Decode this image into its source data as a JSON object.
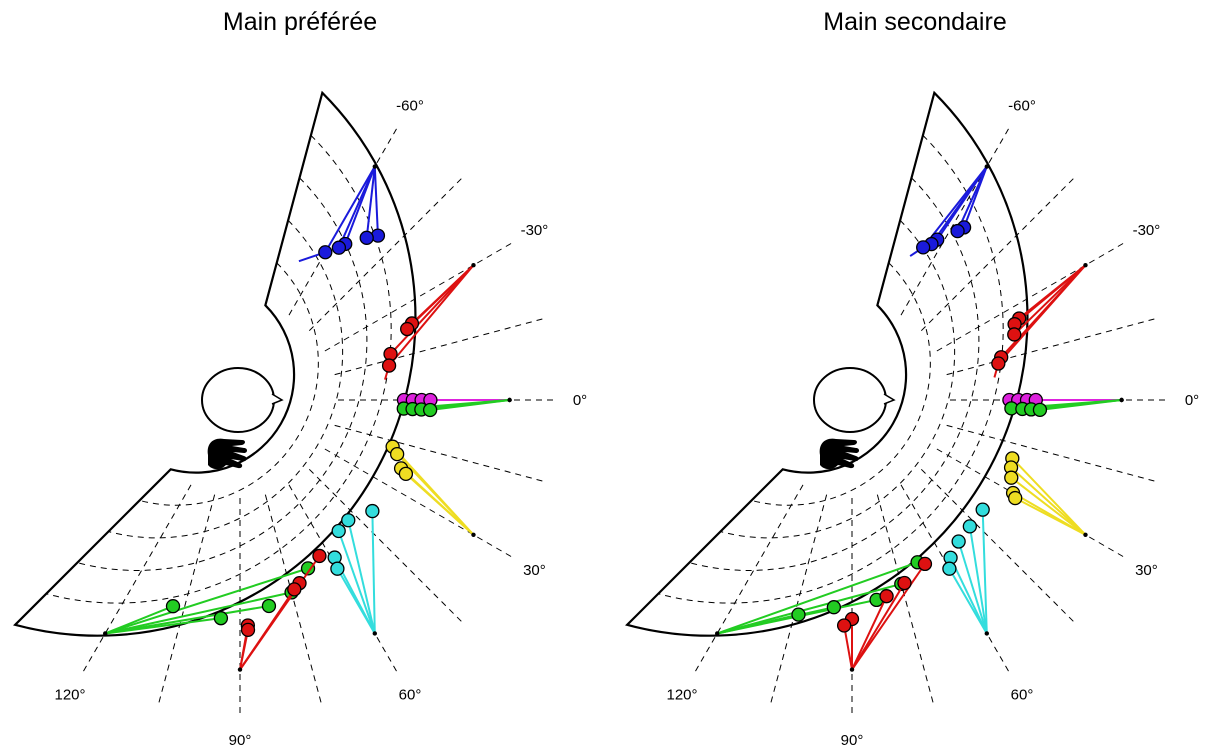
{
  "chart_data": [
    {
      "type": "scatter",
      "subtype": "polar-sector",
      "title": "Main préférée",
      "angle_unit": "degrees",
      "angle_range": [
        -75,
        135
      ],
      "angle_ticks": [
        {
          "angle": -60,
          "label": "-60°"
        },
        {
          "angle": -30,
          "label": "-30°"
        },
        {
          "angle": 0,
          "label": "0°"
        },
        {
          "angle": 30,
          "label": "30°"
        },
        {
          "angle": 60,
          "label": "60°"
        },
        {
          "angle": 90,
          "label": "90°"
        },
        {
          "angle": 120,
          "label": "120°"
        }
      ],
      "radius_range": [
        0,
        1
      ],
      "grid": true,
      "series": [
        {
          "color": "#1a1adb",
          "target": {
            "angle": -60,
            "r": 0.78
          },
          "points": [
            {
              "angle": -50,
              "r": 0.53
            },
            {
              "angle": -52,
              "r": 0.49
            },
            {
              "angle": -56,
              "r": 0.41
            },
            {
              "angle": -57,
              "r": 0.38
            },
            {
              "angle": -60,
              "r": 0.33
            }
          ],
          "start": {
            "angle": -67,
            "r": 0.24
          }
        },
        {
          "color": "#dd1111",
          "target": {
            "angle": -30,
            "r": 0.78
          },
          "points": [
            {
              "angle": -24,
              "r": 0.41
            },
            {
              "angle": -23,
              "r": 0.38
            },
            {
              "angle": -17,
              "r": 0.27
            },
            {
              "angle": -13,
              "r": 0.25
            }
          ],
          "start": {
            "angle": -8,
            "r": 0.22
          }
        },
        {
          "color": "#dd22dd",
          "target": {
            "angle": 0,
            "r": 0.78
          },
          "points": [
            {
              "angle": 0,
              "r": 0.3
            },
            {
              "angle": 0,
              "r": 0.34
            },
            {
              "angle": 0,
              "r": 0.38
            },
            {
              "angle": 0,
              "r": 0.42
            }
          ]
        },
        {
          "color": "#22cc22",
          "target": {
            "angle": 0,
            "r": 0.78
          },
          "points": [
            {
              "angle": 3,
              "r": 0.3
            },
            {
              "angle": 3,
              "r": 0.34
            },
            {
              "angle": 3,
              "r": 0.38
            },
            {
              "angle": 3,
              "r": 0.42
            }
          ]
        },
        {
          "color": "#eedd22",
          "target": {
            "angle": 30,
            "r": 0.78
          },
          "points": [
            {
              "angle": 17,
              "r": 0.28
            },
            {
              "angle": 19,
              "r": 0.31
            },
            {
              "angle": 23,
              "r": 0.35
            },
            {
              "angle": 24,
              "r": 0.38
            }
          ]
        },
        {
          "color": "#33dddd",
          "target": {
            "angle": 60,
            "r": 0.78
          },
          "points": [
            {
              "angle": 40,
              "r": 0.34
            },
            {
              "angle": 48,
              "r": 0.29
            },
            {
              "angle": 53,
              "r": 0.3
            },
            {
              "angle": 59,
              "r": 0.39
            },
            {
              "angle": 60,
              "r": 0.44
            }
          ]
        },
        {
          "color": "#22cc22",
          "target": {
            "angle": 120,
            "r": 0.78
          },
          "points": [
            {
              "angle": 68,
              "r": 0.38
            },
            {
              "angle": 75,
              "r": 0.46
            },
            {
              "angle": 82,
              "r": 0.5
            },
            {
              "angle": 95,
              "r": 0.55
            },
            {
              "angle": 108,
              "r": 0.54
            }
          ]
        },
        {
          "color": "#dd1111",
          "target": {
            "angle": 90,
            "r": 0.78
          },
          "points": [
            {
              "angle": 63,
              "r": 0.35
            },
            {
              "angle": 72,
              "r": 0.43
            },
            {
              "angle": 74,
              "r": 0.45
            },
            {
              "angle": 88,
              "r": 0.58
            },
            {
              "angle": 88,
              "r": 0.6
            }
          ]
        }
      ]
    },
    {
      "type": "scatter",
      "subtype": "polar-sector",
      "title": "Main secondaire",
      "angle_unit": "degrees",
      "angle_range": [
        -75,
        135
      ],
      "angle_ticks": [
        {
          "angle": -60,
          "label": "-60°"
        },
        {
          "angle": -30,
          "label": "-30°"
        },
        {
          "angle": 0,
          "label": "0°"
        },
        {
          "angle": 30,
          "label": "30°"
        },
        {
          "angle": 60,
          "label": "60°"
        },
        {
          "angle": 90,
          "label": "90°"
        },
        {
          "angle": 120,
          "label": "120°"
        }
      ],
      "radius_range": [
        0,
        1
      ],
      "grid": true,
      "series": [
        {
          "color": "#1a1adb",
          "target": {
            "angle": -60,
            "r": 0.78
          },
          "points": [
            {
              "angle": -57,
              "r": 0.49
            },
            {
              "angle": -58,
              "r": 0.46
            },
            {
              "angle": -62,
              "r": 0.38
            },
            {
              "angle": -63,
              "r": 0.35
            },
            {
              "angle": -65,
              "r": 0.32
            }
          ],
          "start": {
            "angle": -68,
            "r": 0.26
          }
        },
        {
          "color": "#dd1111",
          "target": {
            "angle": -30,
            "r": 0.78
          },
          "points": [
            {
              "angle": -26,
              "r": 0.4
            },
            {
              "angle": -25,
              "r": 0.37
            },
            {
              "angle": -22,
              "r": 0.35
            },
            {
              "angle": -16,
              "r": 0.26
            },
            {
              "angle": -14,
              "r": 0.24
            }
          ],
          "start": {
            "angle": -9,
            "r": 0.21
          }
        },
        {
          "color": "#dd22dd",
          "target": {
            "angle": 0,
            "r": 0.78
          },
          "points": [
            {
              "angle": 0,
              "r": 0.27
            },
            {
              "angle": 0,
              "r": 0.31
            },
            {
              "angle": 0,
              "r": 0.35
            },
            {
              "angle": 0,
              "r": 0.39
            }
          ]
        },
        {
          "color": "#22cc22",
          "target": {
            "angle": 0,
            "r": 0.78
          },
          "points": [
            {
              "angle": 3,
              "r": 0.28
            },
            {
              "angle": 3,
              "r": 0.33
            },
            {
              "angle": 3,
              "r": 0.37
            },
            {
              "angle": 3,
              "r": 0.41
            }
          ]
        },
        {
          "color": "#eedd22",
          "target": {
            "angle": 30,
            "r": 0.78
          },
          "points": [
            {
              "angle": 20,
              "r": 0.33
            },
            {
              "angle": 23,
              "r": 0.34
            },
            {
              "angle": 26,
              "r": 0.36
            },
            {
              "angle": 30,
              "r": 0.4
            },
            {
              "angle": 31,
              "r": 0.42
            }
          ]
        },
        {
          "color": "#33dddd",
          "target": {
            "angle": 60,
            "r": 0.78
          },
          "points": [
            {
              "angle": 40,
              "r": 0.33
            },
            {
              "angle": 47,
              "r": 0.34
            },
            {
              "angle": 53,
              "r": 0.36
            },
            {
              "angle": 58,
              "r": 0.4
            },
            {
              "angle": 60,
              "r": 0.44
            }
          ]
        },
        {
          "color": "#22cc22",
          "target": {
            "angle": 120,
            "r": 0.78
          },
          "points": [
            {
              "angle": 68,
              "r": 0.35
            },
            {
              "angle": 75,
              "r": 0.42
            },
            {
              "angle": 83,
              "r": 0.47
            },
            {
              "angle": 95,
              "r": 0.5
            },
            {
              "angle": 104,
              "r": 0.56
            }
          ]
        },
        {
          "color": "#dd1111",
          "target": {
            "angle": 90,
            "r": 0.78
          },
          "points": [
            {
              "angle": 66,
              "r": 0.37
            },
            {
              "angle": 74,
              "r": 0.42
            },
            {
              "angle": 80,
              "r": 0.46
            },
            {
              "angle": 90,
              "r": 0.55
            },
            {
              "angle": 92,
              "r": 0.58
            }
          ]
        }
      ]
    }
  ]
}
